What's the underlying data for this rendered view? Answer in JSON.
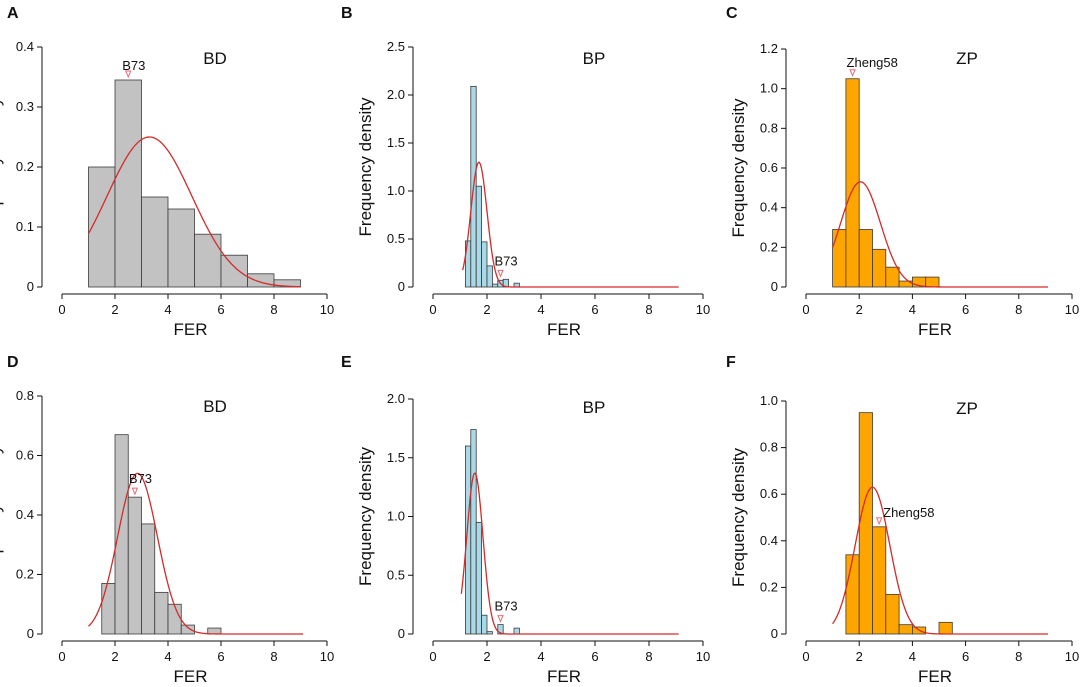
{
  "figure": {
    "colors": {
      "gray": "#c2c2c2",
      "blue": "#a9d8e6",
      "orange": "#ffa500",
      "curve": "#d42a2a",
      "marker": "#e26b78",
      "axis": "#111111"
    }
  },
  "chart_data": [
    {
      "panel": "A",
      "type": "bar",
      "title": "BD",
      "xlabel": "FER",
      "ylabel": "Frequency density",
      "xlim": [
        0,
        10
      ],
      "ylim": [
        0,
        0.4
      ],
      "xticks": [
        0,
        2,
        4,
        6,
        8,
        10
      ],
      "yticks": [
        0,
        0.1,
        0.2,
        0.3,
        0.4
      ],
      "yticklabels": [
        "0",
        "0.1",
        "0.2",
        "0.3",
        "0.4"
      ],
      "bar_color": "gray",
      "bins": [
        [
          1,
          2,
          0.2
        ],
        [
          2,
          3,
          0.345
        ],
        [
          3,
          4,
          0.15
        ],
        [
          4,
          5,
          0.13
        ],
        [
          5,
          6,
          0.088
        ],
        [
          6,
          7,
          0.053
        ],
        [
          7,
          8,
          0.022
        ],
        [
          8,
          9,
          0.012
        ]
      ],
      "normal_curve": {
        "mean": 3.3,
        "sd": 1.6,
        "peak": 0.25,
        "x_range": [
          1,
          9
        ]
      },
      "annotation": {
        "label": "B73",
        "x": 2.5,
        "y": 0.345
      }
    },
    {
      "panel": "B",
      "type": "bar",
      "title": "BP",
      "xlabel": "FER",
      "ylabel": "Frequency density",
      "xlim": [
        0,
        10
      ],
      "ylim": [
        0,
        2.5
      ],
      "xticks": [
        0,
        2,
        4,
        6,
        8,
        10
      ],
      "yticks": [
        0,
        0.5,
        1.0,
        1.5,
        2.0,
        2.5
      ],
      "yticklabels": [
        "0",
        "0.5",
        "1.0",
        "1.5",
        "2.0",
        "2.5"
      ],
      "bar_color": "blue",
      "bins": [
        [
          1.2,
          1.4,
          0.48
        ],
        [
          1.4,
          1.6,
          2.09
        ],
        [
          1.6,
          1.8,
          1.05
        ],
        [
          1.8,
          2.0,
          0.47
        ],
        [
          2.0,
          2.2,
          0.22
        ],
        [
          2.2,
          2.4,
          0.03
        ],
        [
          2.4,
          2.6,
          0.07
        ],
        [
          2.6,
          2.8,
          0.08
        ],
        [
          3.0,
          3.2,
          0.04
        ]
      ],
      "normal_curve": {
        "mean": 1.7,
        "sd": 0.3,
        "peak": 1.3,
        "x_range": [
          1.1,
          9.1
        ]
      },
      "annotation": {
        "label": "B73",
        "x": 2.5,
        "y": 0.08
      }
    },
    {
      "panel": "C",
      "type": "bar",
      "title": "ZP",
      "xlabel": "FER",
      "ylabel": "Frequency density",
      "xlim": [
        0,
        10
      ],
      "ylim": [
        0,
        1.2
      ],
      "xticks": [
        0,
        2,
        4,
        6,
        8,
        10
      ],
      "yticks": [
        0,
        0.2,
        0.4,
        0.6,
        0.8,
        1.0,
        1.2
      ],
      "yticklabels": [
        "0",
        "0.2",
        "0.4",
        "0.6",
        "0.8",
        "1.0",
        "1.2"
      ],
      "bar_color": "orange",
      "bins": [
        [
          1,
          1.5,
          0.29
        ],
        [
          1.5,
          2,
          1.05
        ],
        [
          2,
          2.5,
          0.29
        ],
        [
          2.5,
          3,
          0.19
        ],
        [
          3,
          3.5,
          0.1
        ],
        [
          3.5,
          4,
          0.03
        ],
        [
          4,
          4.5,
          0.05
        ],
        [
          4.5,
          5,
          0.05
        ]
      ],
      "normal_curve": {
        "mean": 2.05,
        "sd": 0.75,
        "peak": 0.53,
        "x_range": [
          1,
          9.1
        ]
      },
      "annotation": {
        "label": "Zheng58",
        "x": 1.75,
        "y": 1.05
      }
    },
    {
      "panel": "D",
      "type": "bar",
      "title": "BD",
      "xlabel": "FER",
      "ylabel": "Frequency density",
      "xlim": [
        0,
        10
      ],
      "ylim": [
        0,
        0.8
      ],
      "xticks": [
        0,
        2,
        4,
        6,
        8,
        10
      ],
      "yticks": [
        0,
        0.2,
        0.4,
        0.6,
        0.8
      ],
      "yticklabels": [
        "0",
        "0.2",
        "0.4",
        "0.6",
        "0.8"
      ],
      "bar_color": "gray",
      "bins": [
        [
          1.5,
          2,
          0.17
        ],
        [
          2,
          2.5,
          0.67
        ],
        [
          2.5,
          3,
          0.46
        ],
        [
          3,
          3.5,
          0.37
        ],
        [
          3.5,
          4,
          0.14
        ],
        [
          4,
          4.5,
          0.1
        ],
        [
          4.5,
          5,
          0.03
        ],
        [
          5.5,
          6,
          0.02
        ]
      ],
      "normal_curve": {
        "mean": 2.85,
        "sd": 0.75,
        "peak": 0.54,
        "x_range": [
          1,
          9.1
        ]
      },
      "annotation": {
        "label": "B73",
        "x": 2.75,
        "y": 0.46
      }
    },
    {
      "panel": "E",
      "type": "bar",
      "title": "BP",
      "xlabel": "FER",
      "ylabel": "Frequency density",
      "xlim": [
        0,
        10
      ],
      "ylim": [
        0,
        2.0
      ],
      "xticks": [
        0,
        2,
        4,
        6,
        8,
        10
      ],
      "yticks": [
        0,
        0.5,
        1.0,
        1.5,
        2.0
      ],
      "yticklabels": [
        "0",
        "0.5",
        "1.0",
        "1.5",
        "2.0"
      ],
      "bar_color": "blue",
      "bins": [
        [
          1.2,
          1.4,
          1.6
        ],
        [
          1.4,
          1.6,
          1.74
        ],
        [
          1.6,
          1.8,
          0.95
        ],
        [
          1.8,
          2.0,
          0.16
        ],
        [
          2.0,
          2.2,
          0.02
        ],
        [
          2.4,
          2.6,
          0.08
        ],
        [
          3.0,
          3.2,
          0.05
        ]
      ],
      "normal_curve": {
        "mean": 1.55,
        "sd": 0.3,
        "peak": 1.37,
        "x_range": [
          1.05,
          9.1
        ]
      },
      "annotation": {
        "label": "B73",
        "x": 2.5,
        "y": 0.08
      }
    },
    {
      "panel": "F",
      "type": "bar",
      "title": "ZP",
      "xlabel": "FER",
      "ylabel": "Frequency density",
      "xlim": [
        0,
        10
      ],
      "ylim": [
        0,
        1.0
      ],
      "xticks": [
        0,
        2,
        4,
        6,
        8,
        10
      ],
      "yticks": [
        0,
        0.2,
        0.4,
        0.6,
        0.8,
        1.0
      ],
      "yticklabels": [
        "0",
        "0.2",
        "0.4",
        "0.6",
        "0.8",
        "1.0"
      ],
      "bar_color": "orange",
      "bins": [
        [
          1.5,
          2,
          0.34
        ],
        [
          2,
          2.5,
          0.95
        ],
        [
          2.5,
          3,
          0.46
        ],
        [
          3,
          3.5,
          0.17
        ],
        [
          3.5,
          4,
          0.04
        ],
        [
          4,
          4.5,
          0.03
        ],
        [
          5,
          5.5,
          0.05
        ]
      ],
      "normal_curve": {
        "mean": 2.5,
        "sd": 0.65,
        "peak": 0.63,
        "x_range": [
          1,
          9.1
        ]
      },
      "annotation": {
        "label": "Zheng58",
        "x": 2.75,
        "y": 0.46
      }
    }
  ]
}
